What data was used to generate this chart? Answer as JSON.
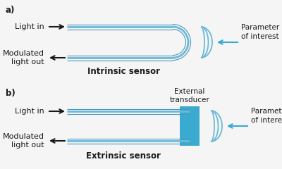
{
  "fiber_color": "#6bb8d8",
  "fiber_color_edge": "#4a9abf",
  "transducer_color": "#3aaad0",
  "black": "#1a1a1a",
  "blue_arrow": "#3aaad0",
  "bg_color": "#f5f5f5",
  "label_a": "a)",
  "label_b": "b)",
  "light_in": "Light in",
  "modulated_out": "Modulated\nlight out",
  "intrinsic_label": "Intrinsic sensor",
  "extrinsic_label": "Extrinsic sensor",
  "param_label": "Parameter\nof interest",
  "ext_transducer_label": "External\ntransducer",
  "font_size": 8,
  "font_size_bold": 8.5,
  "font_size_small": 7.5
}
